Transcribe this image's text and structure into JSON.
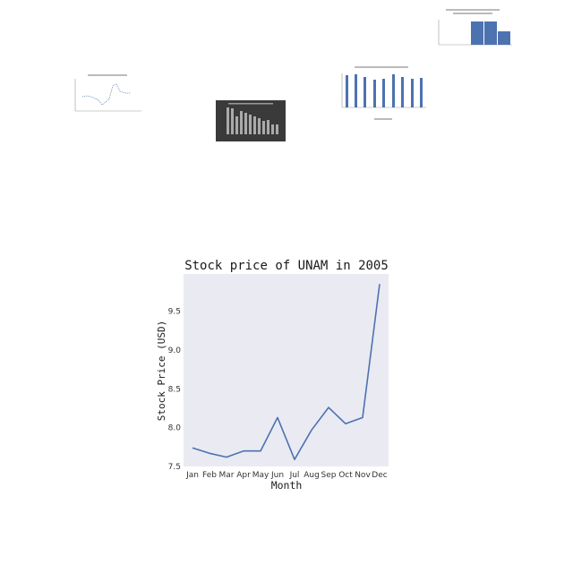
{
  "chart_data": {
    "type": "line",
    "title": "Stock price of UNAM in 2005",
    "xlabel": "Month",
    "ylabel": "Stock Price (USD)",
    "categories": [
      "Jan",
      "Feb",
      "Mar",
      "Apr",
      "May",
      "Jun",
      "Jul",
      "Aug",
      "Sep",
      "Oct",
      "Nov",
      "Dec"
    ],
    "values": [
      7.74,
      7.67,
      7.62,
      7.7,
      7.7,
      8.13,
      7.59,
      7.97,
      8.26,
      8.05,
      8.13,
      9.85
    ],
    "yticks": [
      "7.5",
      "8.0",
      "8.5",
      "9.0",
      "9.5"
    ],
    "ylim": [
      7.5,
      9.98
    ],
    "grid": false,
    "colors": {
      "line": "#4c72b0",
      "plot_background": "#eaeaf2"
    }
  }
}
